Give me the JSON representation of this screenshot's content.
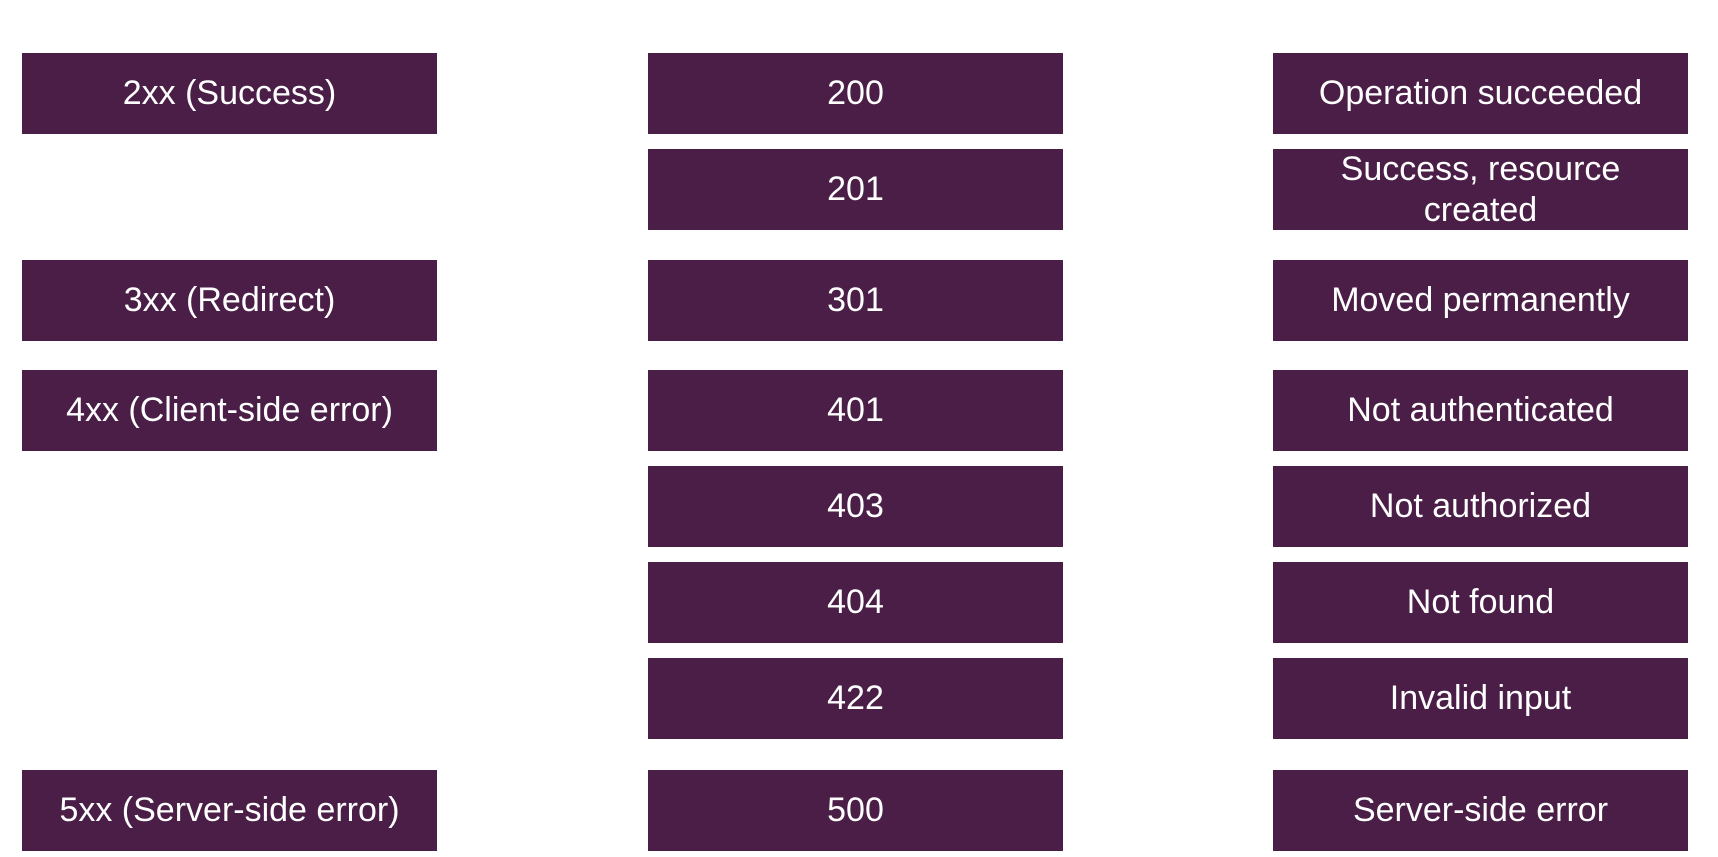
{
  "colors": {
    "box_fill": "#4a1e47",
    "box_text": "#ffffff",
    "background": "#ffffff"
  },
  "categories": [
    {
      "label": "2xx (Success)"
    },
    {
      "label": "3xx (Redirect)"
    },
    {
      "label": "4xx (Client-side error)"
    },
    {
      "label": "5xx (Server-side error)"
    }
  ],
  "codes": [
    {
      "code": "200",
      "description": "Operation succeeded"
    },
    {
      "code": "201",
      "description": "Success, resource created"
    },
    {
      "code": "301",
      "description": "Moved permanently"
    },
    {
      "code": "401",
      "description": "Not authenticated"
    },
    {
      "code": "403",
      "description": "Not authorized"
    },
    {
      "code": "404",
      "description": "Not found"
    },
    {
      "code": "422",
      "description": "Invalid input"
    },
    {
      "code": "500",
      "description": "Server-side error"
    }
  ]
}
